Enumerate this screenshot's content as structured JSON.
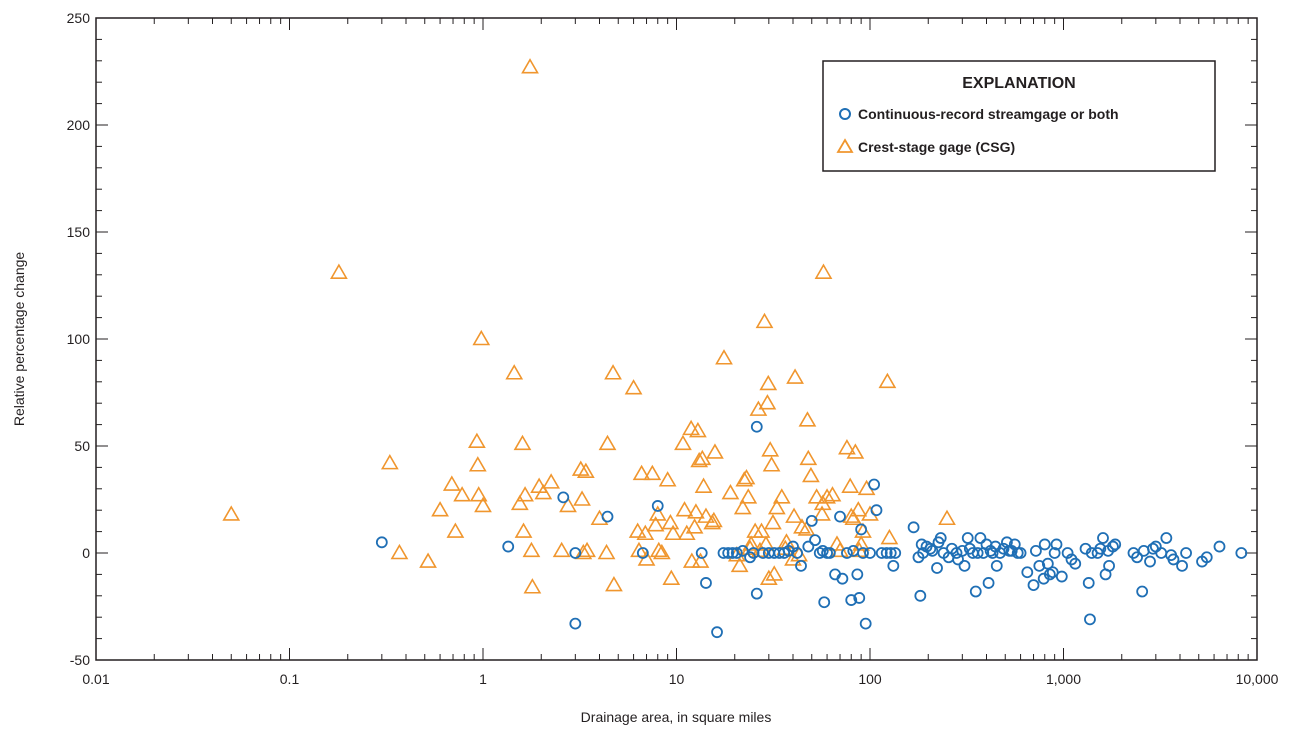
{
  "chart_data": {
    "type": "scatter",
    "xlabel": "Drainage area, in square miles",
    "ylabel": "Relative percentage change",
    "x_scale": "log",
    "xlim": [
      0.01,
      10000
    ],
    "ylim": [
      -50,
      250
    ],
    "x_ticks": [
      0.01,
      0.1,
      1,
      10,
      100,
      1000,
      10000
    ],
    "x_tick_labels": [
      "0.01",
      "0.1",
      "1",
      "10",
      "100",
      "1,000",
      "10,000"
    ],
    "y_ticks": [
      -50,
      0,
      50,
      100,
      150,
      200,
      250
    ],
    "y_tick_labels": [
      "-50",
      "0",
      "50",
      "100",
      "150",
      "200",
      "250"
    ],
    "grid": false,
    "legend": {
      "title": "EXPLANATION",
      "placement": "top-right",
      "entries": [
        {
          "label": "Continuous-record streamgage or both",
          "marker": "circle",
          "color": "#1f6fb5"
        },
        {
          "label": "Crest-stage gage (CSG)",
          "marker": "triangle",
          "color": "#f0962e"
        }
      ]
    },
    "series": [
      {
        "name": "Continuous-record streamgage or both",
        "marker": "circle",
        "color": "#1f6fb5",
        "points": [
          [
            0.3,
            5
          ],
          [
            1.35,
            3
          ],
          [
            2.6,
            26
          ],
          [
            3.0,
            -33
          ],
          [
            3.0,
            0
          ],
          [
            4.4,
            17
          ],
          [
            6.7,
            0
          ],
          [
            8.0,
            22
          ],
          [
            13.5,
            0
          ],
          [
            14.2,
            -14
          ],
          [
            16.2,
            -37
          ],
          [
            17.5,
            0
          ],
          [
            18.5,
            0
          ],
          [
            19.5,
            0
          ],
          [
            20.5,
            0
          ],
          [
            22,
            1
          ],
          [
            24,
            -2
          ],
          [
            25,
            0
          ],
          [
            26,
            59
          ],
          [
            26,
            -19
          ],
          [
            28,
            0
          ],
          [
            30,
            0
          ],
          [
            32,
            0
          ],
          [
            34,
            0
          ],
          [
            36,
            0
          ],
          [
            38,
            1
          ],
          [
            40,
            3
          ],
          [
            42,
            0
          ],
          [
            44,
            -6
          ],
          [
            48,
            3
          ],
          [
            50,
            15
          ],
          [
            52,
            6
          ],
          [
            55,
            0
          ],
          [
            57,
            1
          ],
          [
            58,
            -23
          ],
          [
            60,
            0
          ],
          [
            62,
            0
          ],
          [
            66,
            -10
          ],
          [
            70,
            17
          ],
          [
            72,
            -12
          ],
          [
            76,
            0
          ],
          [
            80,
            -22
          ],
          [
            82,
            1
          ],
          [
            86,
            -10
          ],
          [
            88,
            -21
          ],
          [
            90,
            11
          ],
          [
            92,
            0
          ],
          [
            95,
            -33
          ],
          [
            100,
            0
          ],
          [
            105,
            32
          ],
          [
            108,
            20
          ],
          [
            115,
            0
          ],
          [
            122,
            0
          ],
          [
            128,
            0
          ],
          [
            132,
            -6
          ],
          [
            135,
            0
          ],
          [
            168,
            12
          ],
          [
            178,
            -2
          ],
          [
            182,
            -20
          ],
          [
            185,
            4
          ],
          [
            188,
            0
          ],
          [
            196,
            3
          ],
          [
            205,
            2
          ],
          [
            210,
            1
          ],
          [
            222,
            -7
          ],
          [
            226,
            5
          ],
          [
            232,
            7
          ],
          [
            240,
            0
          ],
          [
            255,
            -2
          ],
          [
            265,
            2
          ],
          [
            280,
            0
          ],
          [
            285,
            -3
          ],
          [
            300,
            1
          ],
          [
            308,
            -6
          ],
          [
            320,
            7
          ],
          [
            328,
            2
          ],
          [
            340,
            0
          ],
          [
            352,
            -18
          ],
          [
            360,
            0
          ],
          [
            372,
            7
          ],
          [
            385,
            0
          ],
          [
            400,
            4
          ],
          [
            410,
            -14
          ],
          [
            420,
            1
          ],
          [
            430,
            0
          ],
          [
            445,
            3
          ],
          [
            452,
            -6
          ],
          [
            470,
            0
          ],
          [
            490,
            2
          ],
          [
            510,
            5
          ],
          [
            525,
            1
          ],
          [
            540,
            1
          ],
          [
            560,
            4
          ],
          [
            580,
            0
          ],
          [
            600,
            0
          ],
          [
            650,
            -9
          ],
          [
            700,
            -15
          ],
          [
            720,
            1
          ],
          [
            750,
            -6
          ],
          [
            790,
            -12
          ],
          [
            800,
            4
          ],
          [
            830,
            -5
          ],
          [
            850,
            -10
          ],
          [
            880,
            -9
          ],
          [
            900,
            0
          ],
          [
            920,
            4
          ],
          [
            980,
            -11
          ],
          [
            1050,
            0
          ],
          [
            1100,
            -3
          ],
          [
            1150,
            -5
          ],
          [
            1300,
            2
          ],
          [
            1350,
            -14
          ],
          [
            1370,
            -31
          ],
          [
            1400,
            0
          ],
          [
            1500,
            0
          ],
          [
            1550,
            2
          ],
          [
            1600,
            7
          ],
          [
            1650,
            -10
          ],
          [
            1700,
            1
          ],
          [
            1720,
            -6
          ],
          [
            1800,
            3
          ],
          [
            1850,
            4
          ],
          [
            2300,
            0
          ],
          [
            2400,
            -2
          ],
          [
            2550,
            -18
          ],
          [
            2600,
            1
          ],
          [
            2800,
            -4
          ],
          [
            2900,
            2
          ],
          [
            3000,
            3
          ],
          [
            3200,
            0
          ],
          [
            3400,
            7
          ],
          [
            3600,
            -1
          ],
          [
            3700,
            -3
          ],
          [
            4100,
            -6
          ],
          [
            4300,
            0
          ],
          [
            5200,
            -4
          ],
          [
            5500,
            -2
          ],
          [
            6400,
            3
          ],
          [
            8300,
            0
          ]
        ]
      },
      {
        "name": "Crest-stage gage (CSG)",
        "marker": "triangle",
        "color": "#f0962e",
        "points": [
          [
            0.05,
            18
          ],
          [
            0.18,
            131
          ],
          [
            0.33,
            42
          ],
          [
            0.37,
            0
          ],
          [
            0.52,
            -4
          ],
          [
            0.6,
            20
          ],
          [
            0.69,
            32
          ],
          [
            0.72,
            10
          ],
          [
            0.78,
            27
          ],
          [
            0.93,
            52
          ],
          [
            0.94,
            41
          ],
          [
            0.95,
            27
          ],
          [
            0.98,
            100
          ],
          [
            1.0,
            22
          ],
          [
            1.45,
            84
          ],
          [
            1.55,
            23
          ],
          [
            1.6,
            51
          ],
          [
            1.62,
            10
          ],
          [
            1.65,
            27
          ],
          [
            1.75,
            227
          ],
          [
            1.78,
            1
          ],
          [
            1.8,
            -16
          ],
          [
            1.95,
            31
          ],
          [
            2.05,
            28
          ],
          [
            2.25,
            33
          ],
          [
            2.55,
            1
          ],
          [
            2.75,
            22
          ],
          [
            3.2,
            39
          ],
          [
            3.25,
            25
          ],
          [
            3.3,
            0
          ],
          [
            3.4,
            38
          ],
          [
            3.45,
            1
          ],
          [
            4.0,
            16
          ],
          [
            4.35,
            0
          ],
          [
            4.4,
            51
          ],
          [
            4.7,
            84
          ],
          [
            4.75,
            -15
          ],
          [
            6.0,
            77
          ],
          [
            6.3,
            10
          ],
          [
            6.4,
            1
          ],
          [
            6.6,
            37
          ],
          [
            6.9,
            9
          ],
          [
            7.0,
            -3
          ],
          [
            7.5,
            37
          ],
          [
            7.8,
            13
          ],
          [
            8.0,
            18
          ],
          [
            8.1,
            1
          ],
          [
            8.4,
            0
          ],
          [
            9.0,
            34
          ],
          [
            9.3,
            14
          ],
          [
            9.4,
            -12
          ],
          [
            9.6,
            9
          ],
          [
            10.8,
            51
          ],
          [
            11.0,
            20
          ],
          [
            11.3,
            9
          ],
          [
            11.9,
            58
          ],
          [
            12.0,
            -4
          ],
          [
            12.4,
            12
          ],
          [
            12.6,
            19
          ],
          [
            12.9,
            57
          ],
          [
            13.1,
            43
          ],
          [
            13.3,
            -4
          ],
          [
            13.6,
            44
          ],
          [
            13.8,
            31
          ],
          [
            14.2,
            17
          ],
          [
            15.3,
            14
          ],
          [
            15.6,
            15
          ],
          [
            15.8,
            47
          ],
          [
            17.6,
            91
          ],
          [
            19.0,
            28
          ],
          [
            20.5,
            -1
          ],
          [
            21.2,
            -6
          ],
          [
            22.0,
            21
          ],
          [
            22.4,
            34
          ],
          [
            23.0,
            35
          ],
          [
            23.5,
            26
          ],
          [
            24.0,
            2
          ],
          [
            24.3,
            4
          ],
          [
            25.5,
            10
          ],
          [
            26.5,
            67
          ],
          [
            27.0,
            1
          ],
          [
            27.5,
            10
          ],
          [
            28.5,
            108
          ],
          [
            29.0,
            4
          ],
          [
            29.5,
            70
          ],
          [
            29.8,
            79
          ],
          [
            30.0,
            -12
          ],
          [
            30.5,
            48
          ],
          [
            31.0,
            41
          ],
          [
            31.5,
            14
          ],
          [
            32.0,
            -10
          ],
          [
            33.0,
            21
          ],
          [
            35.0,
            26
          ],
          [
            36.5,
            2
          ],
          [
            37.0,
            5
          ],
          [
            40.0,
            -3
          ],
          [
            40.5,
            17
          ],
          [
            41.0,
            82
          ],
          [
            43.0,
            -1
          ],
          [
            44.5,
            12
          ],
          [
            47.0,
            11
          ],
          [
            47.5,
            62
          ],
          [
            48.0,
            44
          ],
          [
            49.5,
            36
          ],
          [
            53.0,
            26
          ],
          [
            56.5,
            18
          ],
          [
            57.0,
            23
          ],
          [
            57.5,
            131
          ],
          [
            60.0,
            26
          ],
          [
            64.0,
            27
          ],
          [
            67.5,
            4
          ],
          [
            70.0,
            1
          ],
          [
            76.0,
            49
          ],
          [
            79.0,
            31
          ],
          [
            80.0,
            17
          ],
          [
            82.0,
            16
          ],
          [
            84.0,
            47
          ],
          [
            87.0,
            20
          ],
          [
            88.0,
            1
          ],
          [
            90.0,
            4
          ],
          [
            92.0,
            10
          ],
          [
            96.0,
            30
          ],
          [
            100.0,
            18
          ],
          [
            123.0,
            80
          ],
          [
            126.0,
            7
          ],
          [
            250.0,
            16
          ]
        ]
      }
    ]
  }
}
